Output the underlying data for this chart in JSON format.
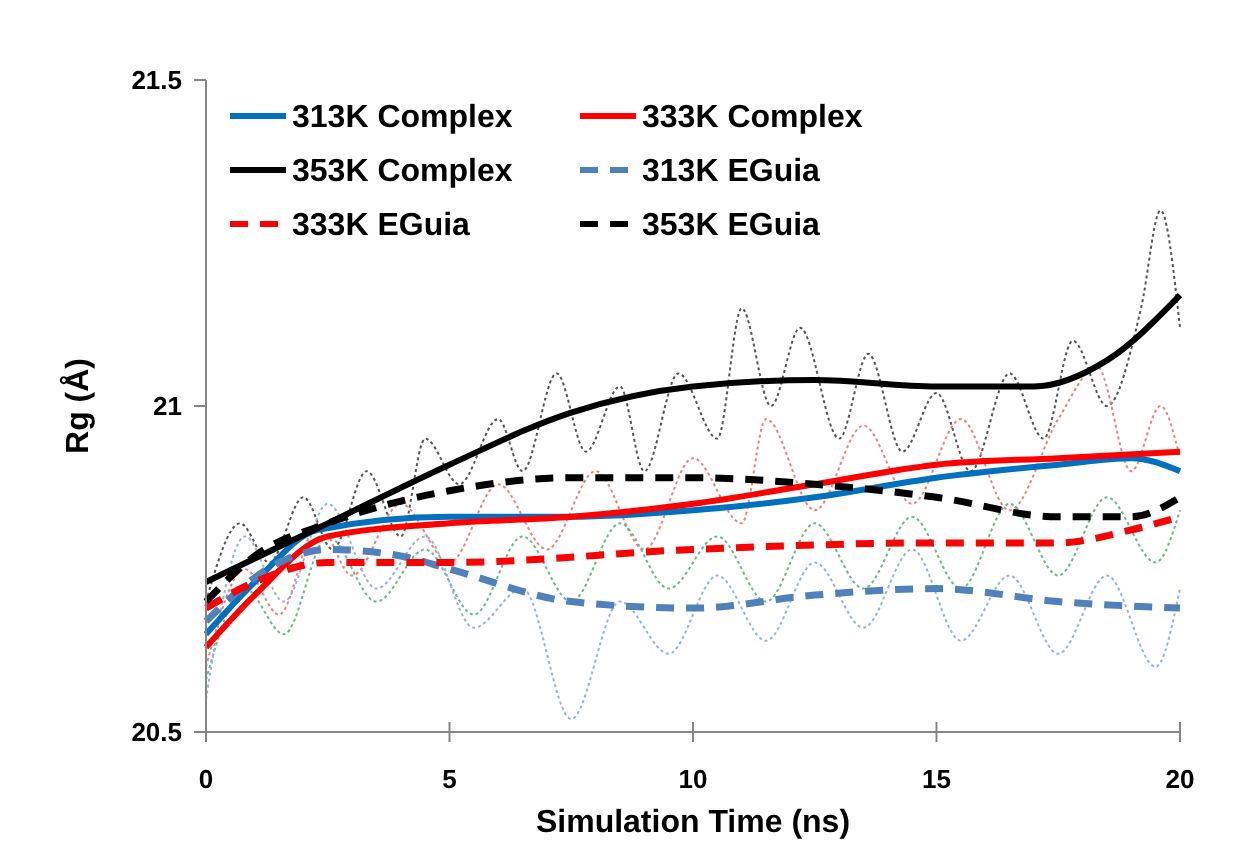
{
  "chart_data": {
    "type": "line",
    "xlabel": "Simulation Time (ns)",
    "ylabel": "Rg (Å)",
    "xlim": [
      0,
      20
    ],
    "xticks": [
      0,
      5,
      10,
      15,
      20
    ],
    "ylim": [
      20.5,
      21.5
    ],
    "yticks": [
      20.5,
      21,
      21.5
    ],
    "grid": false,
    "legend": "top left",
    "marker": "none",
    "series": [
      {
        "color": "#555555",
        "line_style": "dotted",
        "x": [
          0,
          0.7,
          1.3,
          2,
          2.6,
          3.3,
          4,
          4.5,
          5.2,
          6,
          6.5,
          7.2,
          7.8,
          8.5,
          9,
          9.7,
          10.5,
          11,
          11.6,
          12.2,
          13,
          13.6,
          14.3,
          15,
          15.7,
          16.5,
          17.2,
          17.8,
          18.5,
          19.2,
          19.6,
          20
        ],
        "values": [
          20.7,
          20.82,
          20.76,
          20.86,
          20.78,
          20.9,
          20.8,
          20.95,
          20.88,
          20.98,
          20.9,
          21.05,
          20.93,
          21.03,
          20.9,
          21.05,
          20.95,
          21.15,
          21.0,
          21.12,
          20.95,
          21.08,
          20.93,
          21.02,
          20.9,
          21.05,
          20.95,
          21.1,
          21.0,
          21.15,
          21.3,
          21.12
        ]
      },
      {
        "color": "#f08080",
        "line_style": "dotted",
        "x": [
          0,
          0.8,
          1.5,
          2.3,
          3,
          4,
          5,
          6,
          7,
          8,
          9,
          10,
          11,
          11.5,
          12.5,
          13.5,
          14.5,
          15.5,
          16.5,
          17.5,
          18.3,
          19,
          19.6,
          20
        ],
        "values": [
          20.6,
          20.75,
          20.68,
          20.82,
          20.74,
          20.85,
          20.76,
          20.88,
          20.78,
          20.9,
          20.78,
          20.92,
          20.82,
          20.98,
          20.84,
          20.97,
          20.85,
          20.98,
          20.84,
          20.98,
          21.06,
          20.9,
          21.0,
          20.92
        ]
      },
      {
        "color": "#66bb88",
        "line_style": "dotted",
        "x": [
          0,
          0.8,
          1.6,
          2.5,
          3.5,
          4.5,
          5.5,
          6.5,
          7.5,
          8.5,
          9.5,
          10.5,
          11.5,
          12.5,
          13.5,
          14.5,
          15.5,
          16.5,
          17.5,
          18.5,
          19.5,
          20
        ],
        "values": [
          20.58,
          20.72,
          20.65,
          20.8,
          20.7,
          20.78,
          20.68,
          20.8,
          20.7,
          20.82,
          20.72,
          20.8,
          20.7,
          20.82,
          20.72,
          20.83,
          20.72,
          20.85,
          20.74,
          20.86,
          20.76,
          20.84
        ]
      },
      {
        "color": "#99b3d9",
        "line_style": "dotted",
        "x": [
          0,
          0.8,
          1.6,
          2.5,
          3.5,
          4.5,
          5.5,
          6.5,
          7.5,
          8.5,
          9.5,
          10.5,
          11.5,
          12.5,
          13.5,
          14.5,
          15.5,
          16.5,
          17.5,
          18.5,
          19.5,
          20
        ],
        "values": [
          20.55,
          20.8,
          20.7,
          20.85,
          20.72,
          20.8,
          20.66,
          20.72,
          20.52,
          20.7,
          20.62,
          20.74,
          20.64,
          20.76,
          20.66,
          20.78,
          20.64,
          20.74,
          20.62,
          20.74,
          20.6,
          20.72
        ]
      },
      {
        "name": "313K Complex",
        "color": "#0070c0",
        "line_style": "solid",
        "x": [
          0,
          1,
          2.3,
          5,
          7.5,
          10,
          12.5,
          15,
          17.5,
          19,
          20
        ],
        "values": [
          20.65,
          20.73,
          20.81,
          20.83,
          20.83,
          20.84,
          20.86,
          20.89,
          20.91,
          20.92,
          20.9
        ]
      },
      {
        "name": "333K Complex",
        "color": "#ff0000",
        "line_style": "solid",
        "x": [
          0,
          1,
          2.5,
          5,
          7.5,
          10,
          12.5,
          15,
          17.5,
          20
        ],
        "values": [
          20.63,
          20.71,
          20.8,
          20.82,
          20.83,
          20.85,
          20.88,
          20.91,
          20.92,
          20.93
        ]
      },
      {
        "name": "353K Complex",
        "color": "#000000",
        "line_style": "solid",
        "x": [
          0,
          2.5,
          5,
          7.5,
          10,
          12.5,
          15,
          17,
          18.5,
          20
        ],
        "values": [
          20.73,
          20.82,
          20.91,
          20.99,
          21.03,
          21.04,
          21.03,
          21.03,
          21.07,
          21.17
        ]
      },
      {
        "name": "313K EGuia",
        "color": "#4f81bd",
        "line_style": "dashed",
        "x": [
          0,
          1.5,
          2.5,
          4,
          5,
          7.5,
          10,
          12.5,
          15,
          17.5,
          20
        ],
        "values": [
          20.67,
          20.76,
          20.78,
          20.77,
          20.75,
          20.7,
          20.69,
          20.71,
          20.72,
          20.7,
          20.69
        ]
      },
      {
        "name": "333K EGuia",
        "color": "#ff0000",
        "line_style": "dashed",
        "x": [
          0,
          1,
          2.5,
          5,
          10,
          15,
          17.5,
          19,
          20
        ],
        "values": [
          20.69,
          20.73,
          20.76,
          20.76,
          20.78,
          20.79,
          20.79,
          20.81,
          20.83
        ]
      },
      {
        "name": "353K EGuia",
        "color": "#000000",
        "line_style": "dashed",
        "x": [
          0,
          1,
          2.5,
          5,
          7.5,
          10,
          12.5,
          15,
          17.5,
          19,
          20
        ],
        "values": [
          20.7,
          20.77,
          20.82,
          20.87,
          20.89,
          20.89,
          20.88,
          20.86,
          20.83,
          20.83,
          20.86
        ]
      }
    ]
  }
}
